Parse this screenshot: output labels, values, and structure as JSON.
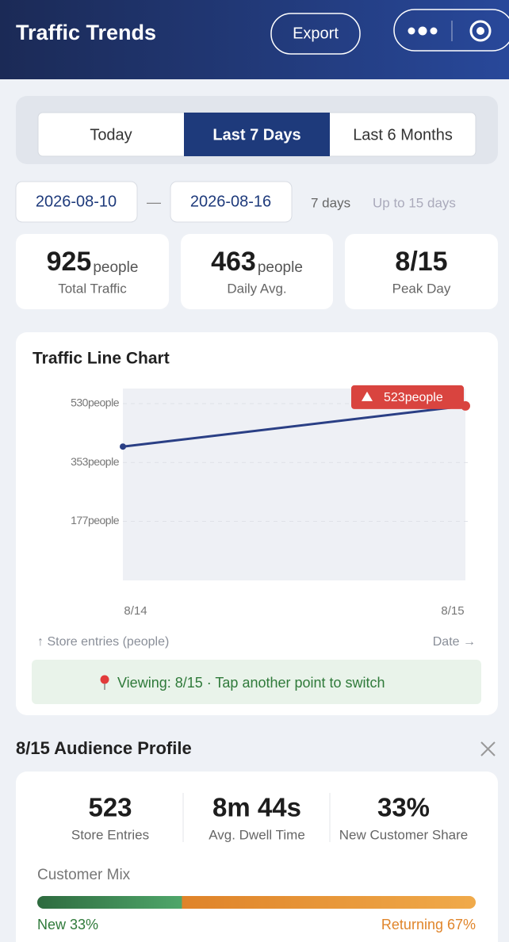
{
  "header": {
    "title": "Traffic Trends",
    "export": "Export"
  },
  "tabs": {
    "items": [
      "Today",
      "Last 7 Days",
      "Last 6 Months"
    ],
    "active": 1
  },
  "date_range": {
    "start": "2026-08-10",
    "separator": "—",
    "end": "2026-08-16",
    "duration": "7 days",
    "limit": "Up to 15 days"
  },
  "stats": [
    {
      "value": "925",
      "unit": "people",
      "label": "Total Traffic"
    },
    {
      "value": "463",
      "unit": "people",
      "label": "Daily Avg."
    },
    {
      "value": "8/15",
      "label": "Peak Day"
    }
  ],
  "chart_data": {
    "type": "line",
    "title": "Traffic Line Chart",
    "categories": [
      "8/14",
      "8/15"
    ],
    "values": [
      401,
      523
    ],
    "value_labels": [
      null,
      "523people"
    ],
    "color": "#2a3f85",
    "highlight_color": "#d9443f",
    "ylim": [
      0,
      575
    ],
    "yticks": [
      {
        "value": 177,
        "label": "177people"
      },
      {
        "value": 353,
        "label": "353people"
      },
      {
        "value": 530,
        "label": "530people"
      }
    ],
    "grid": true,
    "y_label": "↑ Store entries (people)",
    "x_label": "Date →",
    "note": "Viewing: 8/15 · Tap another point to switch"
  },
  "profile": {
    "title": "8/15 Audience Profile",
    "metrics": [
      {
        "value": "523",
        "label": "Store Entries"
      },
      {
        "value": "8m 44s",
        "label": "Avg. Dwell Time"
      },
      {
        "value": "33%",
        "label": "New Customer Share"
      }
    ],
    "mix": {
      "title": "Customer Mix",
      "segments": [
        {
          "label": "New 33%",
          "share": 33
        },
        {
          "label": "Returning 67%",
          "share": 67
        }
      ]
    }
  }
}
